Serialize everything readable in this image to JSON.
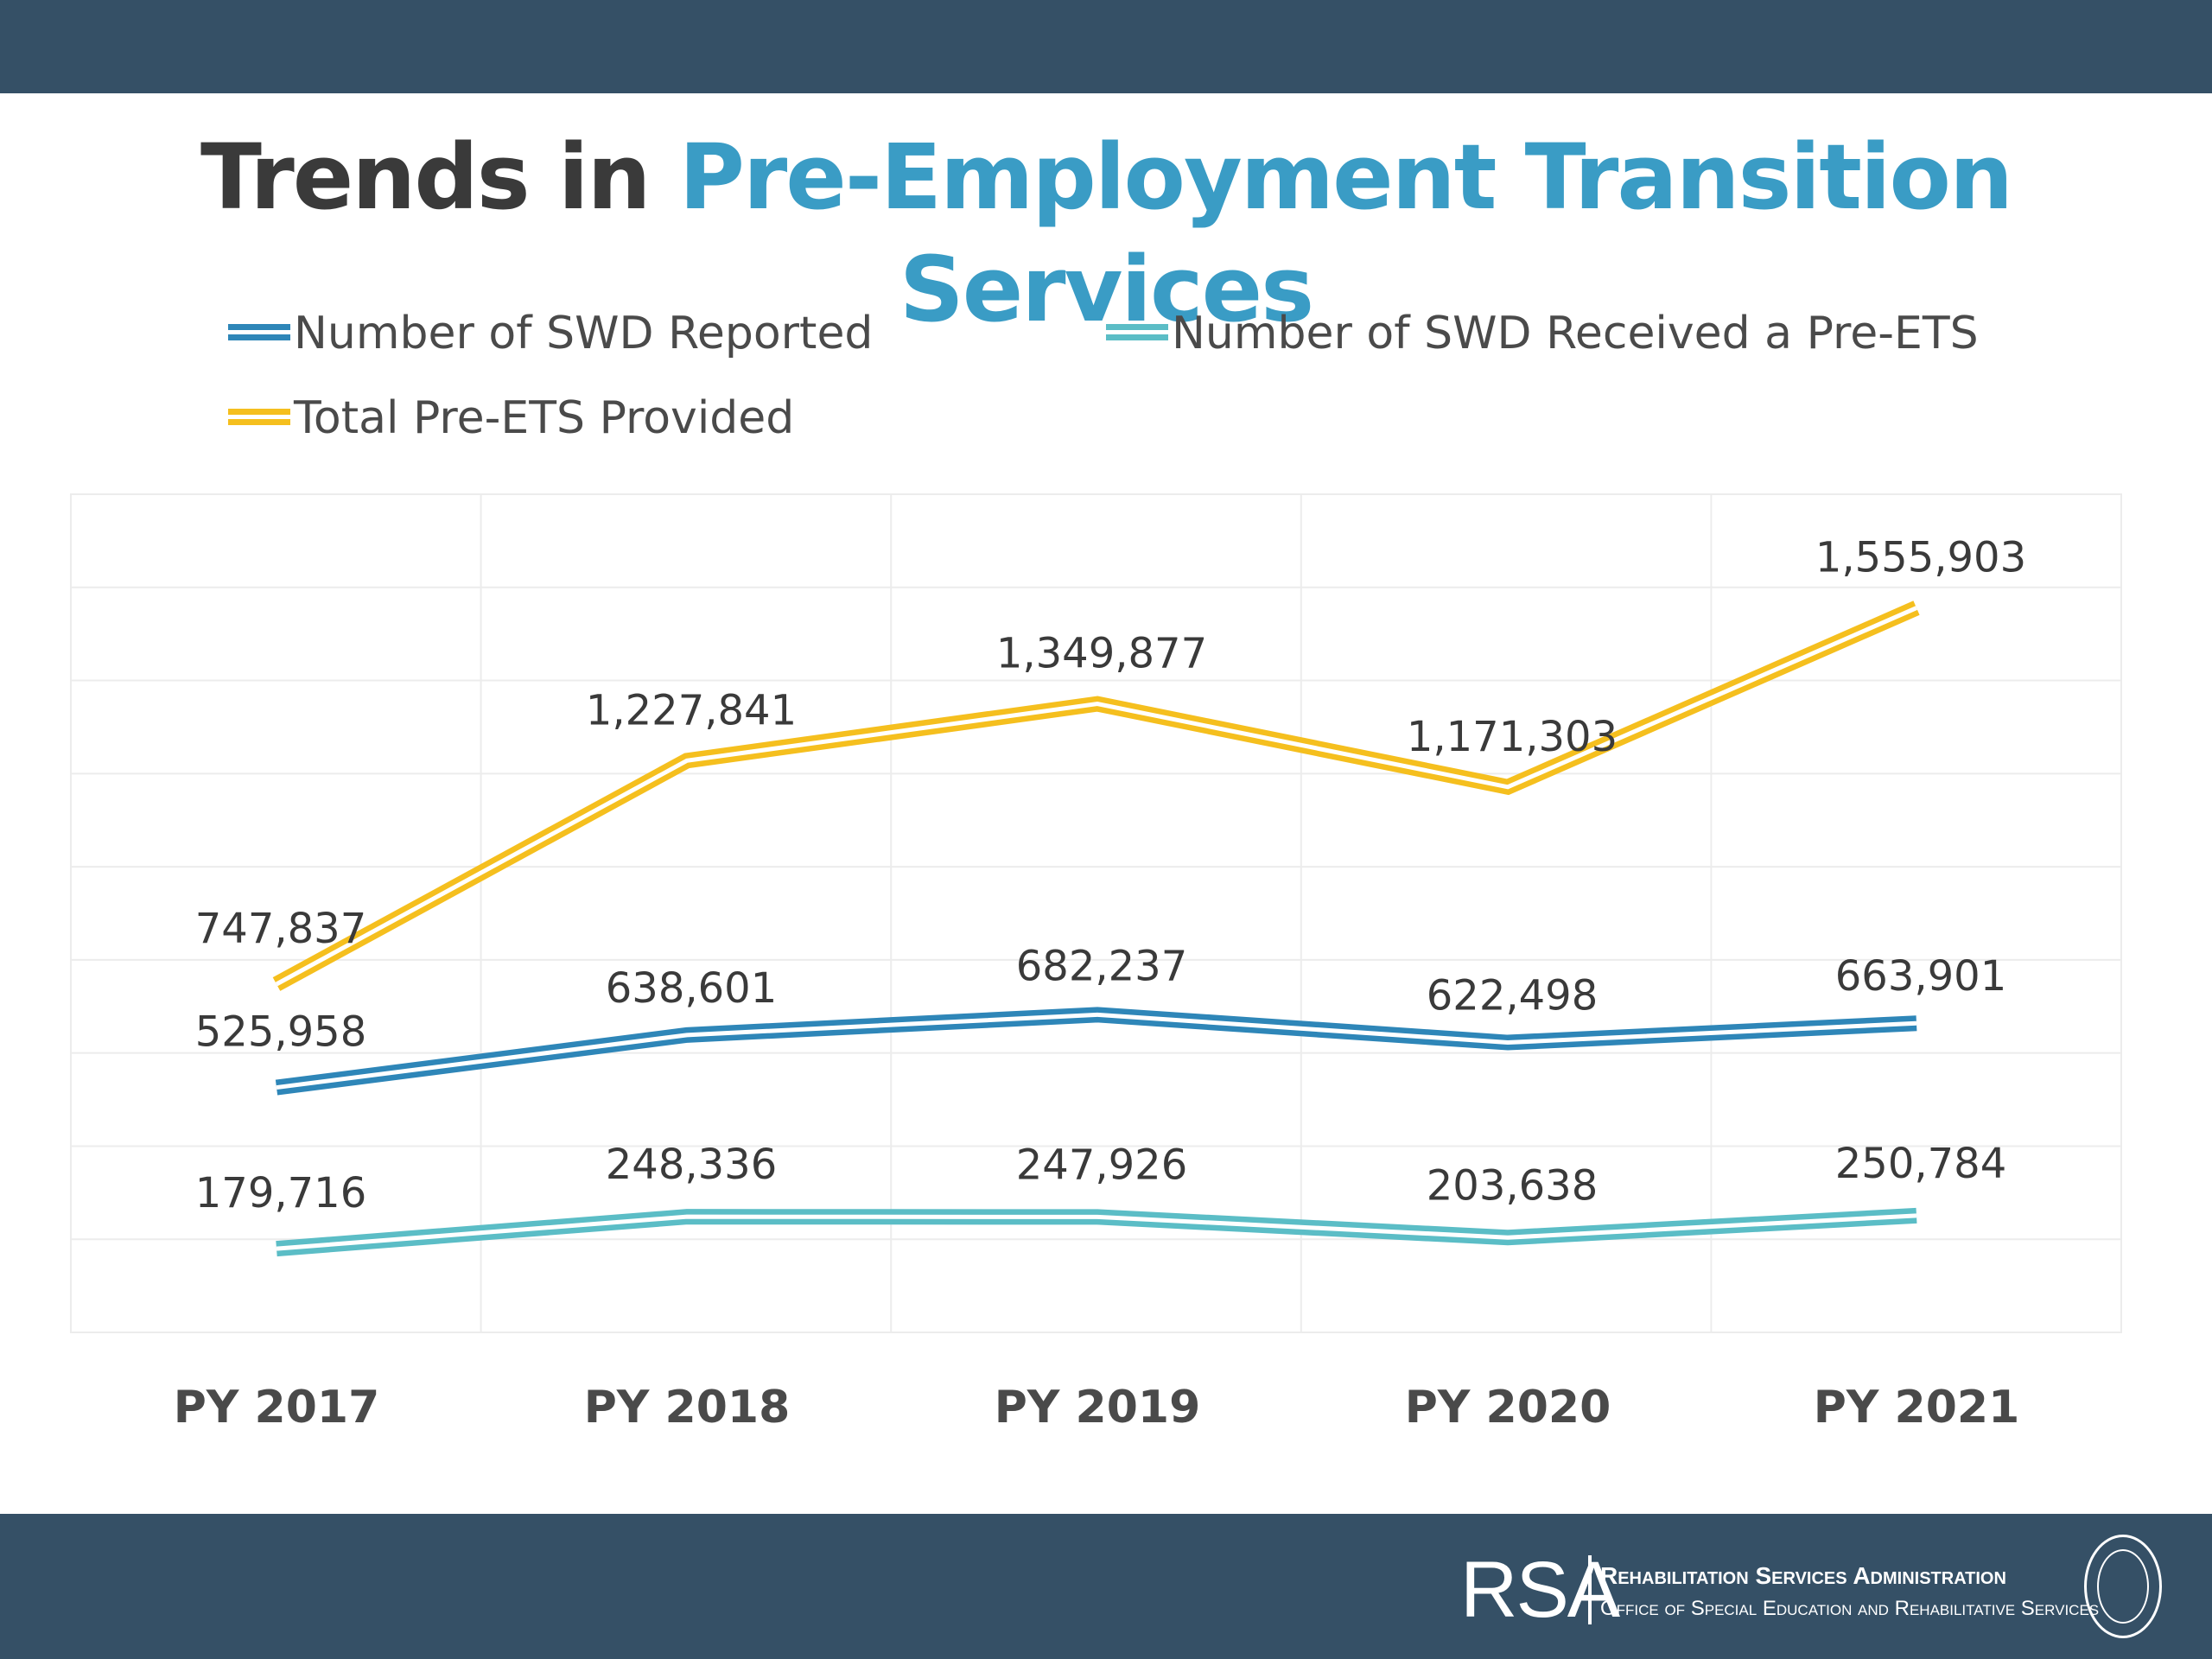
{
  "title": {
    "prefix": "Trends in",
    "highlight": "Pre-Employment Transition Services"
  },
  "footer": {
    "logo_abbrev": "RSA",
    "org_name": "Rehabilitation Services Administration",
    "org_sub": "Office of Special Education and Rehabilitative Services"
  },
  "colors": {
    "header_bar": "#355066",
    "title_accent": "#3a9cc5",
    "series_reported": "#2e86b8",
    "series_received": "#5bbdc6",
    "series_total": "#f5bf1e"
  },
  "chart_data": {
    "type": "line",
    "categories": [
      "PY 2017",
      "PY 2018",
      "PY 2019",
      "PY 2020",
      "PY 2021"
    ],
    "series": [
      {
        "name": "Number of SWD Reported",
        "values": [
          525958,
          638601,
          682237,
          622498,
          663901
        ],
        "labels": [
          "525,958",
          "638,601",
          "682,237",
          "622,498",
          "663,901"
        ],
        "color": "#2e86b8"
      },
      {
        "name": "Number of SWD Received a Pre-ETS",
        "values": [
          179716,
          248336,
          247926,
          203638,
          250784
        ],
        "labels": [
          "179,716",
          "248,336",
          "247,926",
          "203,638",
          "250,784"
        ],
        "color": "#5bbdc6"
      },
      {
        "name": "Total Pre-ETS Provided",
        "values": [
          747837,
          1227841,
          1349877,
          1171303,
          1555903
        ],
        "labels": [
          "747,837",
          "1,227,841",
          "1,349,877",
          "1,171,303",
          "1,555,903"
        ],
        "color": "#f5bf1e"
      }
    ],
    "ylim": [
      0,
      1800000
    ],
    "grid": true,
    "legend": "top"
  }
}
